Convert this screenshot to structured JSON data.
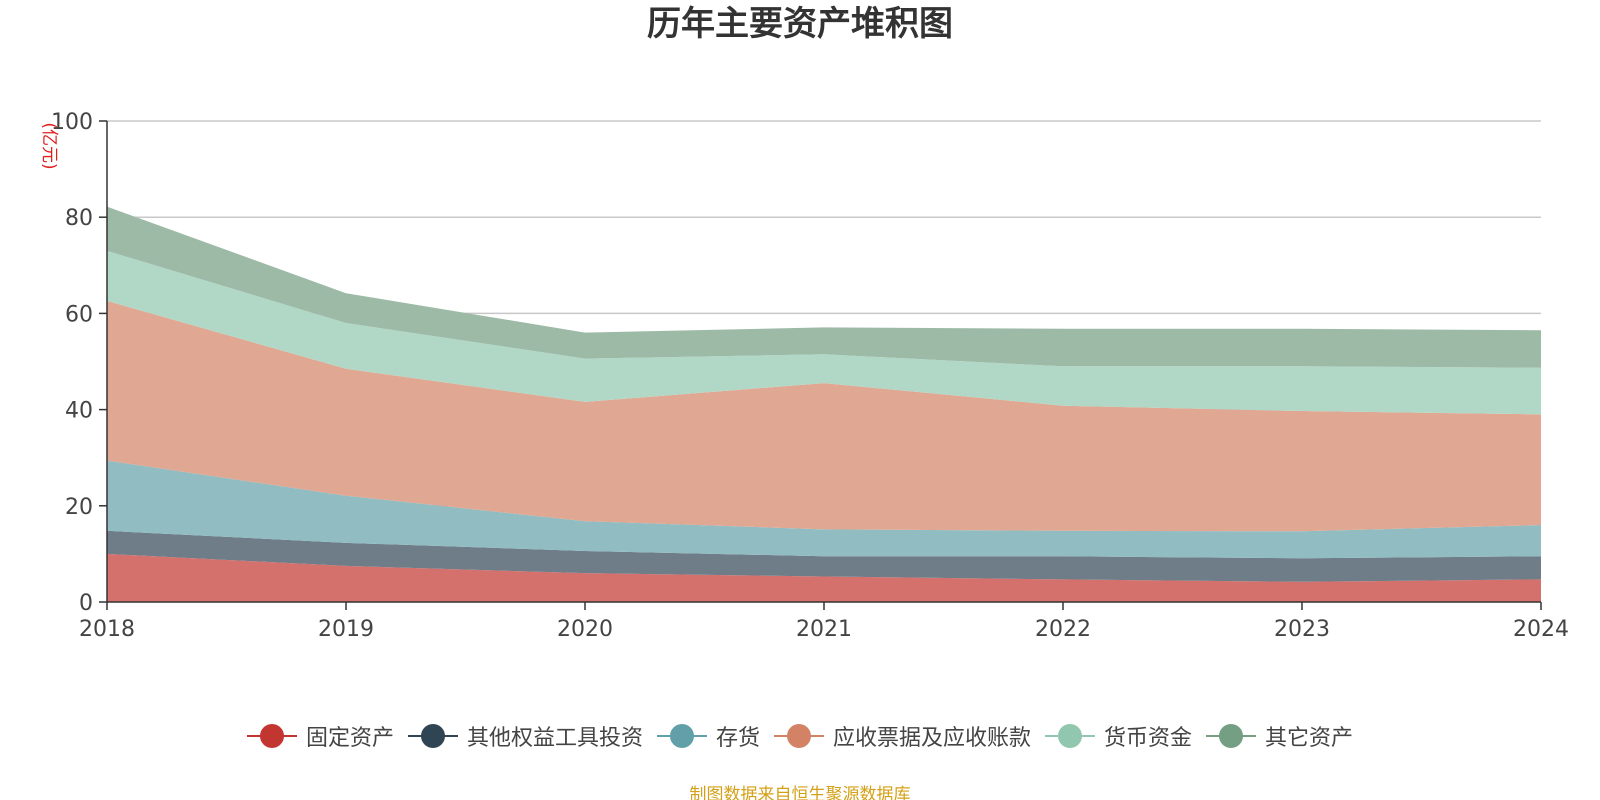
{
  "chart_data": {
    "type": "area",
    "stacked": true,
    "title": "历年主要资产堆积图",
    "y_unit": "(亿元)",
    "x": [
      "2018",
      "2019",
      "2020",
      "2021",
      "2022",
      "2023",
      "2024"
    ],
    "ylim": [
      0,
      100
    ],
    "yticks": [
      0,
      20,
      40,
      60,
      80,
      100
    ],
    "grid": true,
    "legend_position": "bottom",
    "series": [
      {
        "name": "固定资产",
        "color": "#c23531",
        "fill": "#d4716d",
        "values": [
          10.0,
          7.5,
          6.0,
          5.3,
          4.7,
          4.2,
          4.7
        ]
      },
      {
        "name": "其他权益工具投资",
        "color": "#2f4554",
        "fill": "#6f7d89",
        "values": [
          4.8,
          4.8,
          4.6,
          4.2,
          4.8,
          4.9,
          4.8
        ]
      },
      {
        "name": "存货",
        "color": "#61a0a8",
        "fill": "#90bcc2",
        "values": [
          14.6,
          9.8,
          6.2,
          5.6,
          5.3,
          5.6,
          6.5
        ]
      },
      {
        "name": "应收票据及应收账款",
        "color": "#d48265",
        "fill": "#e0a792",
        "values": [
          33.2,
          26.4,
          24.8,
          30.4,
          26.0,
          25.0,
          23.0
        ]
      },
      {
        "name": "货币资金",
        "color": "#91c7ae",
        "fill": "#b1d8c6",
        "values": [
          10.4,
          9.5,
          9.0,
          6.0,
          8.2,
          9.3,
          9.7
        ]
      },
      {
        "name": "其它资产",
        "color": "#749f83",
        "fill": "#9dbaa7",
        "values": [
          9.2,
          6.2,
          5.4,
          5.6,
          7.8,
          7.8,
          7.8
        ]
      }
    ]
  },
  "source_note": "制图数据来自恒生聚源数据库"
}
